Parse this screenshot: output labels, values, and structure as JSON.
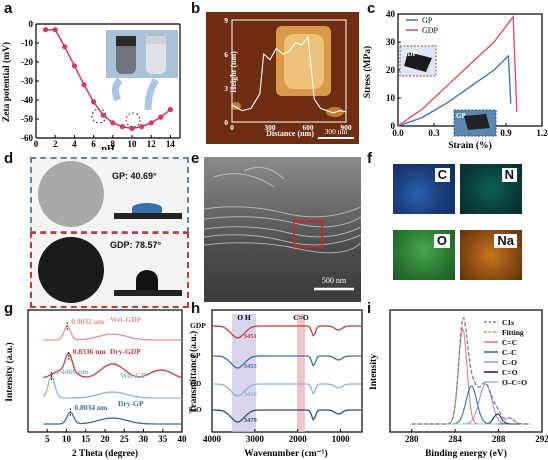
{
  "panels": {
    "a": {
      "label": "a",
      "xlabel": "pH",
      "ylabel": "Zeta potential (mV)"
    },
    "b": {
      "label": "b",
      "xlabel": "Distance (nm)",
      "ylabel": "Height (nm)",
      "scalebar": "300 nm"
    },
    "c": {
      "label": "c",
      "xlabel": "Strain (%)",
      "ylabel": "Stress (MPa)",
      "inset_top": "GDP",
      "inset_bottom": "GP"
    },
    "d": {
      "label": "d",
      "gp_text": "GP: 40.69°",
      "gdp_text": "GDP: 78.57°"
    },
    "e": {
      "label": "e",
      "scalebar": "500 nm"
    },
    "f": {
      "label": "f",
      "maps": [
        "C",
        "N",
        "O",
        "Na"
      ]
    },
    "g": {
      "label": "g",
      "xlabel": "2 Theta (degree)",
      "ylabel": "Intensity (a.u.)"
    },
    "h": {
      "label": "h",
      "xlabel": "Wavenumber  (cm⁻¹)",
      "ylabel": "Transmittance (a.u.)",
      "band_oh": "O  H",
      "band_co": "C=O"
    },
    "i": {
      "label": "i",
      "xlabel": "Binding energy (eV)",
      "ylabel": "Intensity"
    }
  },
  "chart_data": [
    {
      "panel": "a",
      "type": "line",
      "xlabel": "pH",
      "ylabel": "Zeta potential (mV)",
      "xlim": [
        0,
        15
      ],
      "ylim": [
        -60,
        0
      ],
      "xticks": [
        0,
        2,
        4,
        6,
        8,
        10,
        12,
        14
      ],
      "yticks": [
        0,
        -10,
        -20,
        -30,
        -40,
        -50,
        -60
      ],
      "series": [
        {
          "x": [
            1,
            2,
            3,
            4,
            5,
            6,
            7,
            8,
            9,
            10,
            11,
            12,
            13,
            14
          ],
          "y": [
            -3,
            -3,
            -12,
            -22,
            -32,
            -41,
            -48,
            -52,
            -54,
            -55,
            -54,
            -52,
            -49,
            -45
          ]
        }
      ]
    },
    {
      "panel": "b",
      "type": "line",
      "xlabel": "Distance (nm)",
      "ylabel": "Height (nm)",
      "xlim": [
        0,
        900
      ],
      "ylim": [
        0,
        9
      ],
      "xticks": [
        "0",
        "300",
        "600",
        "900"
      ],
      "yticks": [
        "0",
        "3",
        "6",
        "9"
      ],
      "series": [
        {
          "x": [
            0,
            80,
            150,
            220,
            250,
            300,
            350,
            400,
            450,
            500,
            550,
            600,
            650,
            700,
            750,
            800,
            850,
            900
          ],
          "y": [
            1.5,
            1.0,
            1.2,
            2.5,
            6.0,
            5.5,
            6.5,
            6.0,
            6.2,
            7.0,
            6.8,
            7.5,
            2.0,
            1.2,
            1.0,
            0.8,
            1.0,
            0.9
          ]
        }
      ]
    },
    {
      "panel": "c",
      "type": "line",
      "xlabel": "Strain (%)",
      "ylabel": "Stress (MPa)",
      "xlim": [
        0,
        1.2
      ],
      "ylim": [
        0,
        40
      ],
      "xticks": [
        "0.0",
        "0.3",
        "0.6",
        "0.9",
        "1.2"
      ],
      "yticks": [
        "0",
        "10",
        "20",
        "30",
        "40"
      ],
      "series": [
        {
          "name": "GP",
          "color": "#3a6fb0",
          "x": [
            0.0,
            0.2,
            0.4,
            0.6,
            0.8,
            0.92,
            0.94
          ],
          "y": [
            0,
            3,
            8,
            14,
            20,
            25,
            8
          ]
        },
        {
          "name": "GDP",
          "color": "#e0475b",
          "x": [
            0.0,
            0.2,
            0.4,
            0.6,
            0.8,
            0.96,
            0.99
          ],
          "y": [
            0,
            6,
            14,
            22,
            30,
            39,
            5
          ]
        }
      ]
    },
    {
      "panel": "g",
      "type": "line",
      "xlabel": "2 Theta (degree)",
      "ylabel": "Intensity (a.u.)",
      "xlim": [
        0,
        40
      ],
      "xticks": [
        5,
        10,
        15,
        20,
        25,
        30,
        35,
        40
      ],
      "series": [
        {
          "name": "Wet-GDP",
          "color": "#e79090",
          "peak": "0.9032 nm"
        },
        {
          "name": "Dry-GDP",
          "color": "#c83a3a",
          "peak": "0.8336 nm"
        },
        {
          "name": "Wet-GP",
          "color": "#8fb4d3",
          "peak": "1.4466 nm"
        },
        {
          "name": "Dry-GP",
          "color": "#3d6e8f",
          "peak": "0.8034 nm"
        }
      ]
    },
    {
      "panel": "h",
      "type": "line",
      "xlabel": "Wavenumber (cm⁻¹)",
      "ylabel": "Transmittance (a.u.)",
      "xlim": [
        4000,
        500
      ],
      "xticks": [
        "4000",
        "3000",
        "2000",
        "1000"
      ],
      "series": [
        {
          "name": "GDP",
          "color": "#c83a3a",
          "peak": "3451"
        },
        {
          "name": "GP",
          "color": "#3a6fb0",
          "peak": "3453"
        },
        {
          "name": "GD",
          "color": "#8fb4d3",
          "peak": "3458"
        },
        {
          "name": "GO",
          "color": "#2d4f6e",
          "peak": "3479"
        }
      ]
    },
    {
      "panel": "i",
      "type": "line",
      "xlabel": "Binding energy (eV)",
      "ylabel": "Intensity",
      "xlim": [
        292,
        278
      ],
      "xticks": [
        "280",
        "284",
        "288",
        "292"
      ],
      "series": [
        {
          "name": "C1s",
          "color": "#888888"
        },
        {
          "name": "Fitting",
          "color": "#d09a8a"
        },
        {
          "name": "C=C",
          "color": "#e07d8e"
        },
        {
          "name": "C–C",
          "color": "#3a6fb0"
        },
        {
          "name": "C–O",
          "color": "#a98fd8"
        },
        {
          "name": "C=O",
          "color": "#1d2a4a"
        },
        {
          "name": "O–C=O",
          "color": "#9cc1dd"
        }
      ]
    }
  ]
}
